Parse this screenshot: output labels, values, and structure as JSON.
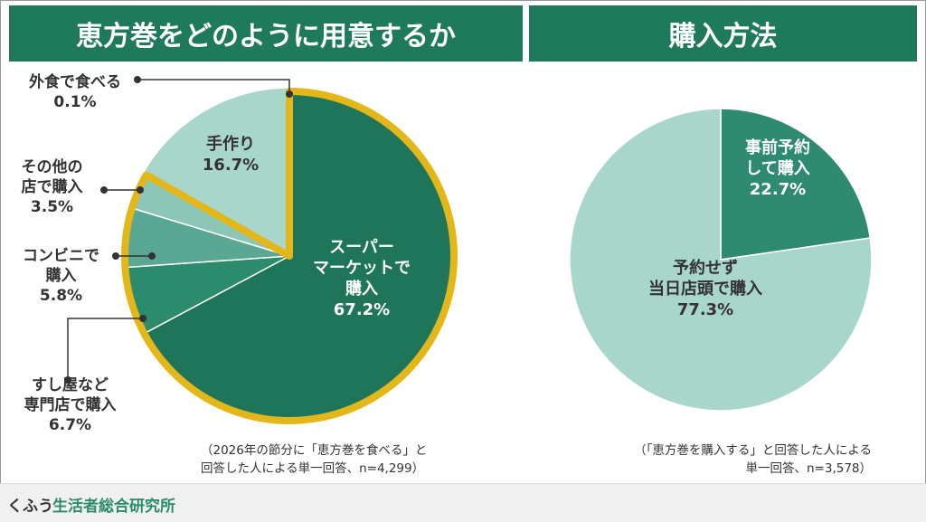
{
  "left_title": "恵方巻をどのように用意するか",
  "right_title": "購入方法",
  "chart_data": [
    {
      "type": "pie",
      "title": "恵方巻をどのように用意するか",
      "unit": "%",
      "slices": [
        {
          "label": "スーパーマーケットで購入",
          "value": 67.2,
          "color": "#1e7559"
        },
        {
          "label": "すし屋など専門店で購入",
          "value": 6.7,
          "color": "#2c8b6c"
        },
        {
          "label": "コンビニで購入",
          "value": 5.8,
          "color": "#5aa893"
        },
        {
          "label": "その他の店で購入",
          "value": 3.5,
          "color": "#8cc6b6"
        },
        {
          "label": "手作り",
          "value": 16.7,
          "color": "#a9d6cb"
        },
        {
          "label": "外食で食べる",
          "value": 0.1,
          "color": "#c8e5dd"
        }
      ],
      "highlight": "購入 (gold outline)",
      "highlight_color": "#e3b71a",
      "note": [
        "（2026年の節分に「恵方巻を食べる」と",
        "回答した人による単一回答、n=4,299）"
      ]
    },
    {
      "type": "pie",
      "title": "購入方法",
      "unit": "%",
      "slices": [
        {
          "label": "事前予約して購入",
          "value": 22.7,
          "color": "#2e8b70"
        },
        {
          "label": "予約せず当日店頭で購入",
          "value": 77.3,
          "color": "#a9d6cb"
        }
      ],
      "note": [
        "（「恵方巻を購入する」と回答した人による",
        "単一回答、n=3,578）"
      ]
    }
  ],
  "labels": {
    "gaishoku": [
      "外食で食べる",
      "0.1%"
    ],
    "tezukuri": [
      "手作り",
      "16.7%"
    ],
    "sonota": [
      "その他の",
      "店で購入",
      "3.5%"
    ],
    "konbini": [
      "コンビニで",
      "購入",
      "5.8%"
    ],
    "sushi": [
      "すし屋など",
      "専門店で購入",
      "6.7%"
    ],
    "super": [
      "スーパー",
      "マーケットで",
      "購入",
      "67.2%"
    ],
    "yoyaku": [
      "事前予約",
      "して購入",
      "22.7%"
    ],
    "touzitsu": [
      "予約せず",
      "当日店頭で購入",
      "77.3%"
    ]
  },
  "footer": {
    "brand1": "くふう",
    "brand2": "生活者総合研究所"
  }
}
